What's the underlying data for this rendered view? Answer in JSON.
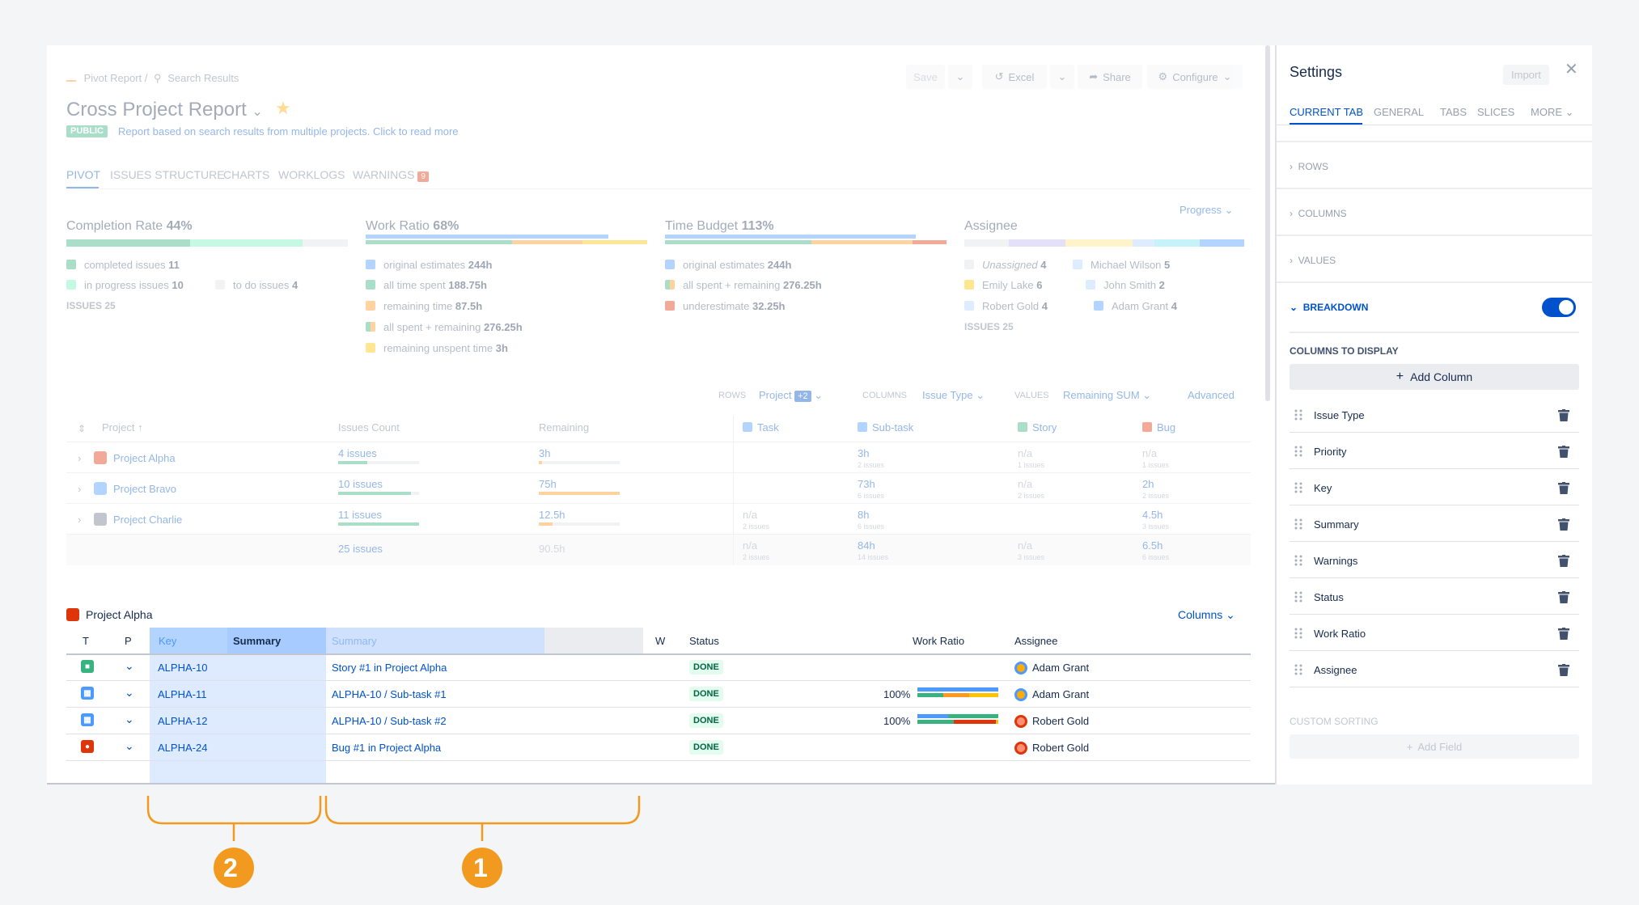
{
  "breadcrumb": {
    "root": "Pivot Report",
    "separator": "/",
    "current": "Search Results"
  },
  "header": {
    "title": "Cross Project Report",
    "badge": "PUBLIC",
    "description": "Report based on search results from multiple projects. Click to read more",
    "actions": {
      "save": "Save",
      "excel": "Excel",
      "share": "Share",
      "configure": "Configure"
    }
  },
  "tabs": [
    {
      "label": "PIVOT"
    },
    {
      "label": "ISSUES STRUCTURE"
    },
    {
      "label": "CHARTS"
    },
    {
      "label": "WORKLOGS"
    },
    {
      "label": "WARNINGS",
      "badge": "9"
    }
  ],
  "progress_dropdown": "Progress",
  "summary": {
    "completion": {
      "title": "Completion Rate",
      "value": "44%",
      "items": [
        {
          "label": "completed issues",
          "value": "11"
        },
        {
          "label": "in progress issues",
          "value": "10"
        },
        {
          "label": "to do issues",
          "value": "4"
        }
      ],
      "footer": "ISSUES 25"
    },
    "work_ratio": {
      "title": "Work Ratio",
      "value": "68%",
      "items": [
        {
          "label": "original estimates",
          "value": "244h"
        },
        {
          "label": "all time spent",
          "value": "188.75h"
        },
        {
          "label": "remaining time",
          "value": "87.5h"
        },
        {
          "label": "all spent + remaining",
          "value": "276.25h"
        },
        {
          "label": "remaining unspent time",
          "value": "3h"
        }
      ]
    },
    "time_budget": {
      "title": "Time Budget",
      "value": "113%",
      "items": [
        {
          "label": "original estimates",
          "value": "244h"
        },
        {
          "label": "all spent + remaining",
          "value": "276.25h"
        },
        {
          "label": "underestimate",
          "value": "32.25h"
        }
      ]
    },
    "assignee": {
      "title": "Assignee",
      "items": [
        {
          "label": "Unassigned",
          "value": "4"
        },
        {
          "label": "Michael Wilson",
          "value": "5"
        },
        {
          "label": "Emily Lake",
          "value": "6"
        },
        {
          "label": "John Smith",
          "value": "2"
        },
        {
          "label": "Robert Gold",
          "value": "4"
        },
        {
          "label": "Adam Grant",
          "value": "4"
        }
      ],
      "footer": "ISSUES 25"
    }
  },
  "config_bar": {
    "rows_label": "ROWS",
    "rows_value": "Project",
    "rows_extra": "+2",
    "columns_label": "COLUMNS",
    "columns_value": "Issue Type",
    "values_label": "VALUES",
    "values_value": "Remaining SUM",
    "advanced": "Advanced"
  },
  "pivot": {
    "headers": {
      "project": "Project",
      "count": "Issues Count",
      "remaining": "Remaining",
      "task": "Task",
      "subtask": "Sub-task",
      "story": "Story",
      "bug": "Bug"
    },
    "rows": [
      {
        "name": "Project Alpha",
        "count": "4 issues",
        "remaining": "3h",
        "task": "",
        "task_sub": "",
        "subtask": "3h",
        "subtask_sub": "2 issues",
        "story": "n/a",
        "story_sub": "1 issues",
        "bug": "n/a",
        "bug_sub": "1 issues"
      },
      {
        "name": "Project Bravo",
        "count": "10 issues",
        "remaining": "75h",
        "task": "",
        "task_sub": "",
        "subtask": "73h",
        "subtask_sub": "6 issues",
        "story": "n/a",
        "story_sub": "2 issues",
        "bug": "2h",
        "bug_sub": "2 issues"
      },
      {
        "name": "Project Charlie",
        "count": "11 issues",
        "remaining": "12.5h",
        "task": "n/a",
        "task_sub": "2 issues",
        "subtask": "8h",
        "subtask_sub": "6 issues",
        "story": "",
        "story_sub": "",
        "bug": "4.5h",
        "bug_sub": "3 issues"
      }
    ],
    "total": {
      "count": "25 issues",
      "remaining": "90.5h",
      "task": "n/a",
      "task_sub": "2 issues",
      "subtask": "84h",
      "subtask_sub": "14 issues",
      "story": "n/a",
      "story_sub": "3 issues",
      "bug": "6.5h",
      "bug_sub": "6 issues"
    }
  },
  "breakdown": {
    "project": "Project Alpha",
    "columns_button": "Columns",
    "headers": {
      "t": "T",
      "p": "P",
      "key": "Key",
      "summary": "Summary",
      "summary2": "Summary",
      "w": "W",
      "status": "Status",
      "work_ratio": "Work Ratio",
      "assignee": "Assignee"
    },
    "rows": [
      {
        "key": "ALPHA-10",
        "summary": "Story #1 in Project Alpha",
        "status": "DONE",
        "ratio": "",
        "assignee": "Adam Grant"
      },
      {
        "key": "ALPHA-11",
        "summary": "ALPHA-10 /  Sub-task #1",
        "status": "DONE",
        "ratio": "100%",
        "assignee": "Adam Grant"
      },
      {
        "key": "ALPHA-12",
        "summary": "ALPHA-10 /  Sub-task #2",
        "status": "DONE",
        "ratio": "100%",
        "assignee": "Robert Gold"
      },
      {
        "key": "ALPHA-24",
        "summary": "Bug #1 in Project Alpha",
        "status": "DONE",
        "ratio": "",
        "assignee": "Robert Gold"
      }
    ]
  },
  "settings": {
    "title": "Settings",
    "import": "Import",
    "tabs": [
      "CURRENT TAB",
      "GENERAL",
      "TABS",
      "SLICES",
      "MORE"
    ],
    "sections": [
      "ROWS",
      "COLUMNS",
      "VALUES"
    ],
    "breakdown": "BREAKDOWN",
    "columns_to_display": "COLUMNS TO DISPLAY",
    "add_column": "Add Column",
    "columns": [
      "Issue Type",
      "Priority",
      "Key",
      "Summary",
      "Warnings",
      "Status",
      "Work Ratio",
      "Assignee"
    ],
    "custom_sorting": "CUSTOM SORTING",
    "add_field": "Add Field"
  },
  "callouts": {
    "one": "1",
    "two": "2"
  },
  "colors": {
    "accent": "#0052cc",
    "orange": "#ff991f",
    "green": "#36b37e",
    "red": "#de350b",
    "yellow": "#ffc400"
  }
}
